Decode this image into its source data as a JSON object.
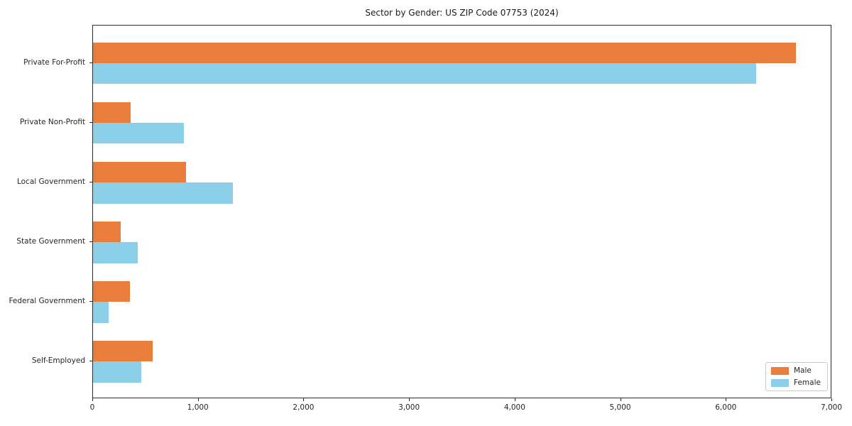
{
  "chart_data": {
    "type": "bar",
    "orientation": "horizontal",
    "title": "Sector by Gender: US ZIP Code 07753 (2024)",
    "categories": [
      "Private For-Profit",
      "Private Non-Profit",
      "Local Government",
      "State Government",
      "Federal Government",
      "Self-Employed"
    ],
    "series": [
      {
        "name": "Male",
        "color": "#e87d3c",
        "values": [
          6670,
          355,
          880,
          265,
          350,
          565
        ]
      },
      {
        "name": "Female",
        "color": "#8bcfe9",
        "values": [
          6290,
          865,
          1325,
          425,
          150,
          460
        ]
      }
    ],
    "xlabel": "",
    "ylabel": "",
    "xlim": [
      0,
      7000
    ],
    "x_ticks": [
      0,
      1000,
      2000,
      3000,
      4000,
      5000,
      6000,
      7000
    ],
    "x_tick_labels": [
      "0",
      "1,000",
      "2,000",
      "3,000",
      "4,000",
      "5,000",
      "6,000",
      "7,000"
    ],
    "grid": false,
    "legend": {
      "position": "lower right"
    }
  }
}
